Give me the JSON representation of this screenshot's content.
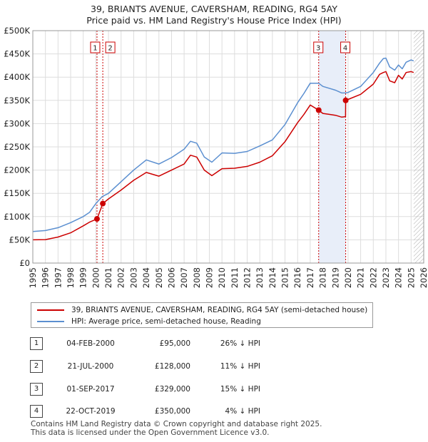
{
  "title_line1": "39, BRIANTS AVENUE, CAVERSHAM, READING, RG4 5AY",
  "title_line2": "Price paid vs. HM Land Registry's House Price Index (HPI)",
  "colors": {
    "price_paid": "#cc0000",
    "hpi": "#5b8fd0",
    "shade": "#e8eef9",
    "grid": "#dddddd"
  },
  "chart_data": {
    "type": "line",
    "x_range": [
      1995,
      2026
    ],
    "ylim": [
      0,
      500000
    ],
    "y_ticks": [
      0,
      50000,
      100000,
      150000,
      200000,
      250000,
      300000,
      350000,
      400000,
      450000,
      500000
    ],
    "y_tick_labels": [
      "£0",
      "£50K",
      "£100K",
      "£150K",
      "£200K",
      "£250K",
      "£300K",
      "£350K",
      "£400K",
      "£450K",
      "£500K"
    ],
    "x_ticks": [
      1995,
      1996,
      1997,
      1998,
      1999,
      2000,
      2001,
      2002,
      2003,
      2004,
      2005,
      2006,
      2007,
      2008,
      2009,
      2010,
      2011,
      2012,
      2013,
      2014,
      2015,
      2016,
      2017,
      2018,
      2019,
      2020,
      2021,
      2022,
      2023,
      2024,
      2025,
      2026
    ],
    "shaded_periods": [
      [
        2017.67,
        2019.81
      ]
    ],
    "hatched_from": 2025.2,
    "series": [
      {
        "name": "39, BRIANTS AVENUE, CAVERSHAM, READING, RG4 5AY (semi-detached house)",
        "x": [
          1995,
          1996,
          1997,
          1998,
          1999,
          1999.5,
          2000.09,
          2000.55,
          2001,
          2002,
          2003,
          2004,
          2005,
          2006,
          2007,
          2007.5,
          2008,
          2008.6,
          2009.2,
          2010,
          2011,
          2012,
          2013,
          2014,
          2015,
          2016,
          2016.5,
          2017,
          2017.67,
          2018,
          2018.5,
          2019,
          2019.5,
          2019.8,
          2019.81,
          2020,
          2021,
          2022,
          2022.5,
          2022.8,
          2023,
          2023.3,
          2023.7,
          2024,
          2024.3,
          2024.6,
          2025,
          2025.2
        ],
        "values": [
          50000,
          50500,
          56000,
          65000,
          80000,
          88000,
          95000,
          128000,
          138000,
          157000,
          178000,
          195000,
          187000,
          200000,
          213000,
          232000,
          228000,
          200000,
          188000,
          203000,
          204000,
          208000,
          217000,
          231000,
          261000,
          302000,
          320000,
          340000,
          329000,
          322000,
          320000,
          318000,
          314000,
          315000,
          350000,
          352000,
          363000,
          385000,
          406000,
          410000,
          412000,
          392000,
          388000,
          404000,
          396000,
          410000,
          412000,
          410000
        ]
      },
      {
        "name": "HPI: Average price, semi-detached house, Reading",
        "x": [
          1995,
          1996,
          1997,
          1998,
          1999,
          1999.5,
          2000,
          2000.5,
          2001,
          2002,
          2003,
          2004,
          2005,
          2006,
          2007,
          2007.5,
          2008,
          2008.6,
          2009.2,
          2010,
          2011,
          2012,
          2013,
          2014,
          2015,
          2016,
          2016.5,
          2017,
          2017.67,
          2018,
          2018.5,
          2019,
          2019.5,
          2019.81,
          2020,
          2021,
          2022,
          2022.5,
          2022.8,
          2023,
          2023.3,
          2023.7,
          2024,
          2024.3,
          2024.6,
          2025,
          2025.2
        ],
        "values": [
          68000,
          70000,
          76000,
          87000,
          100000,
          109000,
          128000,
          143000,
          150000,
          175000,
          200000,
          222000,
          213000,
          227000,
          245000,
          262000,
          258000,
          228000,
          217000,
          237000,
          236000,
          240000,
          252000,
          265000,
          298000,
          345000,
          365000,
          387000,
          387000,
          380000,
          376000,
          372000,
          366000,
          366000,
          367000,
          380000,
          410000,
          430000,
          440000,
          441000,
          422000,
          415000,
          426000,
          418000,
          432000,
          437000,
          435000
        ]
      }
    ],
    "sales": [
      {
        "num": "1",
        "x": 2000.09,
        "value": 95000
      },
      {
        "num": "2",
        "x": 2000.55,
        "value": 128000
      },
      {
        "num": "3",
        "x": 2017.67,
        "value": 329000
      },
      {
        "num": "4",
        "x": 2019.81,
        "value": 350000
      }
    ]
  },
  "legend": {
    "price_paid": "39, BRIANTS AVENUE, CAVERSHAM, READING, RG4 5AY (semi-detached house)",
    "hpi": "HPI: Average price, semi-detached house, Reading"
  },
  "table": [
    {
      "num": "1",
      "date": "04-FEB-2000",
      "price": "£95,000",
      "hpi": "26% ↓ HPI"
    },
    {
      "num": "2",
      "date": "21-JUL-2000",
      "price": "£128,000",
      "hpi": "11% ↓ HPI"
    },
    {
      "num": "3",
      "date": "01-SEP-2017",
      "price": "£329,000",
      "hpi": "15% ↓ HPI"
    },
    {
      "num": "4",
      "date": "22-OCT-2019",
      "price": "£350,000",
      "hpi": "4% ↓ HPI"
    }
  ],
  "footer_line1": "Contains HM Land Registry data © Crown copyright and database right 2025.",
  "footer_line2": "This data is licensed under the Open Government Licence v3.0."
}
